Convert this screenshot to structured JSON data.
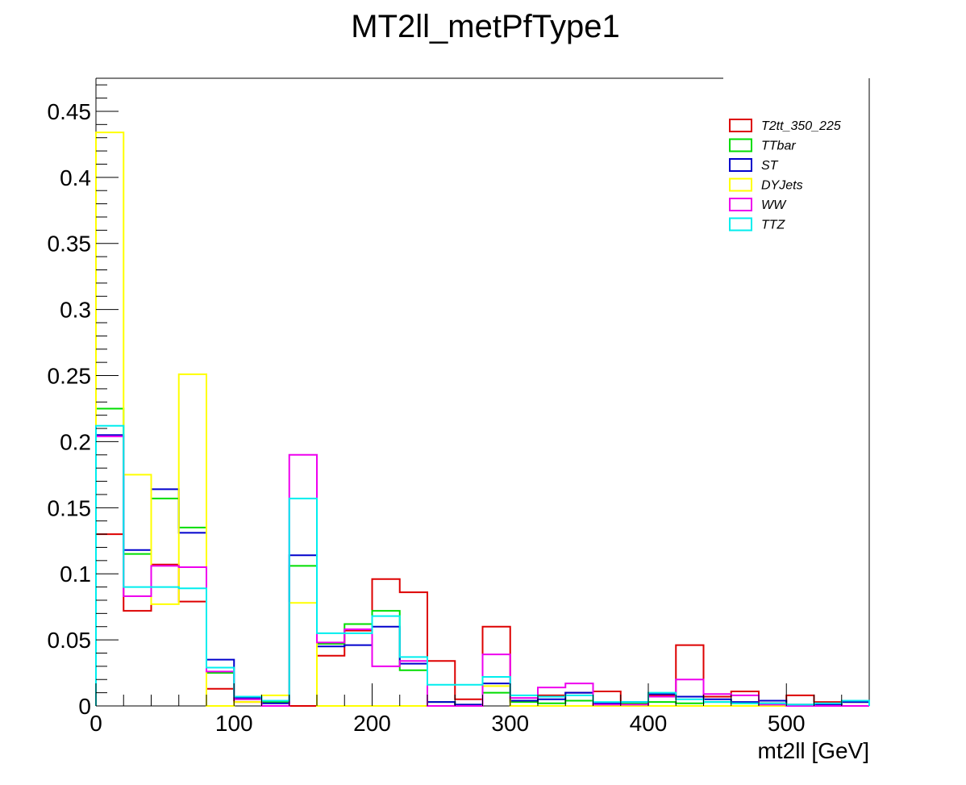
{
  "chart_data": {
    "type": "histogram",
    "title": "MT2ll_metPfType1",
    "xlabel": "mt2ll [GeV]",
    "ylabel": "",
    "xlim": [
      0,
      560
    ],
    "ylim": [
      0,
      0.475
    ],
    "bin_edges": [
      0,
      20,
      40,
      60,
      80,
      100,
      120,
      140,
      160,
      180,
      200,
      220,
      240,
      260,
      280,
      300,
      320,
      340,
      360,
      380,
      400,
      420,
      440,
      460,
      480,
      500,
      520,
      540,
      560
    ],
    "x_ticks": [
      0,
      100,
      200,
      300,
      400,
      500
    ],
    "x_tick_labels": [
      "0",
      "100",
      "200",
      "300",
      "400",
      "500"
    ],
    "y_ticks": [
      0,
      0.05,
      0.1,
      0.15,
      0.2,
      0.25,
      0.3,
      0.35,
      0.4,
      0.45
    ],
    "y_tick_labels": [
      "0",
      "0.05",
      "0.1",
      "0.15",
      "0.2",
      "0.25",
      "0.3",
      "0.35",
      "0.4",
      "0.45"
    ],
    "legend_position": "top-right",
    "grid": false,
    "series": [
      {
        "name": "T2tt_350_225",
        "color": "#dd0000",
        "values": [
          0.13,
          0.072,
          0.107,
          0.079,
          0.013,
          0.003,
          0.0,
          0.0,
          0.038,
          0.057,
          0.096,
          0.086,
          0.034,
          0.005,
          0.06,
          0.004,
          0.008,
          0.01,
          0.011,
          0.002,
          0.008,
          0.046,
          0.007,
          0.011,
          0.002,
          0.008,
          0.003,
          0.003
        ]
      },
      {
        "name": "TTbar",
        "color": "#00dd00",
        "values": [
          0.225,
          0.115,
          0.157,
          0.135,
          0.025,
          0.005,
          0.003,
          0.106,
          0.047,
          0.062,
          0.072,
          0.027,
          0.003,
          0.001,
          0.01,
          0.003,
          0.002,
          0.004,
          0.002,
          0.002,
          0.003,
          0.002,
          0.003,
          0.002,
          0.002,
          0.001,
          0.001,
          0.003
        ]
      },
      {
        "name": "ST",
        "color": "#0000cc",
        "values": [
          0.205,
          0.118,
          0.164,
          0.131,
          0.035,
          0.006,
          0.002,
          0.114,
          0.045,
          0.046,
          0.06,
          0.032,
          0.003,
          0.001,
          0.017,
          0.004,
          0.005,
          0.01,
          0.002,
          0.003,
          0.009,
          0.007,
          0.005,
          0.003,
          0.004,
          0.001,
          0.001,
          0.003
        ]
      },
      {
        "name": "DYJets",
        "color": "#ffff00",
        "values": [
          0.434,
          0.175,
          0.077,
          0.251,
          0.0,
          0.003,
          0.008,
          0.078,
          0.0,
          0.0,
          0.0,
          0.0,
          0.0,
          0.0,
          0.015,
          0.0,
          0.0,
          0.0,
          0.0,
          0.0,
          0.0,
          0.0,
          0.0,
          0.0,
          0.0,
          0.0,
          0.0,
          0.0
        ]
      },
      {
        "name": "WW",
        "color": "#ee00ee",
        "values": [
          0.204,
          0.083,
          0.106,
          0.105,
          0.026,
          0.005,
          0.0,
          0.19,
          0.048,
          0.058,
          0.03,
          0.034,
          0.0,
          0.0,
          0.039,
          0.006,
          0.014,
          0.017,
          0.001,
          0.001,
          0.007,
          0.02,
          0.009,
          0.008,
          0.001,
          0.0,
          0.0,
          0.0
        ]
      },
      {
        "name": "TTZ",
        "color": "#00eeee",
        "values": [
          0.212,
          0.09,
          0.09,
          0.089,
          0.029,
          0.007,
          0.004,
          0.157,
          0.055,
          0.055,
          0.068,
          0.037,
          0.016,
          0.016,
          0.022,
          0.008,
          0.007,
          0.008,
          0.003,
          0.003,
          0.01,
          0.005,
          0.003,
          0.002,
          0.002,
          0.001,
          0.002,
          0.004
        ]
      }
    ]
  }
}
